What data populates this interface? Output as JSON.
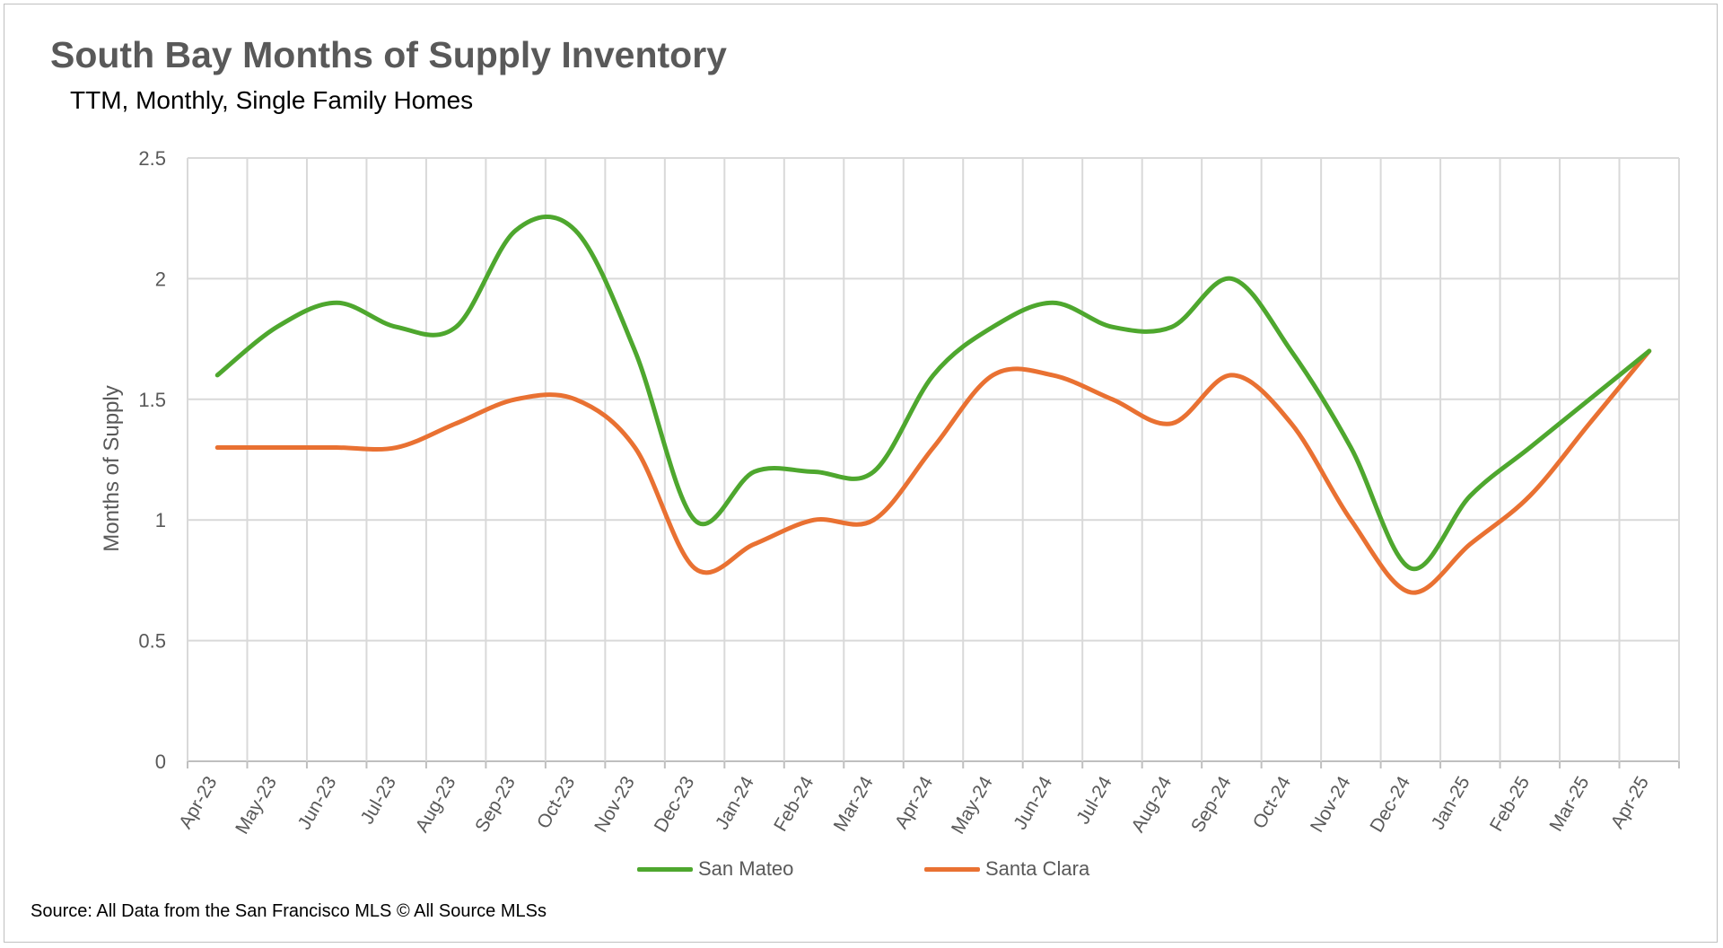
{
  "chart_data": {
    "type": "line",
    "title": "South Bay Months of Supply Inventory",
    "subtitle": "TTM, Monthly, Single Family Homes",
    "ylabel": "Months of Supply",
    "ylim": [
      0,
      2.5
    ],
    "yticks": [
      "0",
      "0.5",
      "1",
      "1.5",
      "2",
      "2.5"
    ],
    "yticks_values": [
      0,
      0.5,
      1,
      1.5,
      2,
      2.5
    ],
    "grid": true,
    "smooth": true,
    "legend_position": "bottom",
    "categories": [
      "Apr-23",
      "May-23",
      "Jun-23",
      "Jul-23",
      "Aug-23",
      "Sep-23",
      "Oct-23",
      "Nov-23",
      "Dec-23",
      "Jan-24",
      "Feb-24",
      "Mar-24",
      "Apr-24",
      "May-24",
      "Jun-24",
      "Jul-24",
      "Aug-24",
      "Sep-24",
      "Oct-24",
      "Nov-24",
      "Dec-24",
      "Jan-25",
      "Feb-25",
      "Mar-25",
      "Apr-25"
    ],
    "series": [
      {
        "name": "San Mateo",
        "color": "#4ea72e",
        "values": [
          1.6,
          1.8,
          1.9,
          1.8,
          1.8,
          2.2,
          2.2,
          1.7,
          1.0,
          1.2,
          1.2,
          1.2,
          1.6,
          1.8,
          1.9,
          1.8,
          1.8,
          2.0,
          1.7,
          1.3,
          0.8,
          1.1,
          1.3,
          1.5,
          1.7
        ]
      },
      {
        "name": "Santa Clara",
        "color": "#e97132",
        "values": [
          1.3,
          1.3,
          1.3,
          1.3,
          1.4,
          1.5,
          1.5,
          1.3,
          0.8,
          0.9,
          1.0,
          1.0,
          1.3,
          1.6,
          1.6,
          1.5,
          1.4,
          1.6,
          1.4,
          1.0,
          0.7,
          0.9,
          1.1,
          1.4,
          1.7
        ]
      }
    ],
    "source": "Source: All Data from the San Francisco MLS © All Source MLSs"
  }
}
